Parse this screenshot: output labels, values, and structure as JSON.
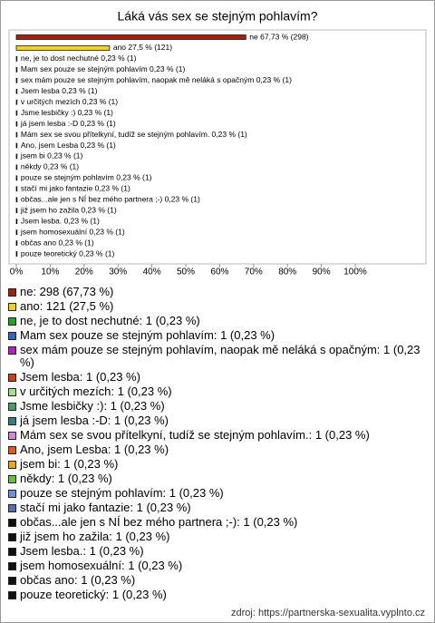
{
  "chart_data": {
    "type": "bar",
    "orientation": "horizontal",
    "title": "Láká vás sex se stejným pohlavím?",
    "categories": [
      "ne",
      "ano",
      "ne, je to dost nechutné",
      "Mam sex pouze se stejným pohlavím",
      "sex mám pouze se stejným pohlavím, naopak mě neláká s opačným",
      "Jsem lesba",
      "v určitých mezích",
      "Jsme lesbičky :)",
      "já jsem lesba :-D",
      "Mám sex se svou přítelkyní, tudíž se stejným pohlavím.",
      "Ano, jsem Lesba",
      "jsem bi",
      "někdy",
      "pouze se stejným pohlavím",
      "stačí mi jako fantazie",
      "občas...ale jen s NÍ bez mého partnera ;-)",
      "již jsem ho zažila",
      "Jsem lesba.",
      "jsem homosexuální",
      "občas ano",
      "pouze teoretický"
    ],
    "values": [
      67.73,
      27.5,
      0.23,
      0.23,
      0.23,
      0.23,
      0.23,
      0.23,
      0.23,
      0.23,
      0.23,
      0.23,
      0.23,
      0.23,
      0.23,
      0.23,
      0.23,
      0.23,
      0.23,
      0.23,
      0.23
    ],
    "value_labels": [
      "ne 67,73 % (298)",
      "ano 27,5 % (121)",
      "ne, je to dost nechutné 0,23 % (1)",
      "Mam sex pouze se stejným pohlavím 0,23 % (1)",
      "sex mám pouze se stejným pohlavím, naopak mě neláká s opačným 0,23 % (1)",
      "Jsem lesba 0,23 % (1)",
      "v určitých mezích 0,23 % (1)",
      "Jsme lesbičky :) 0,23 % (1)",
      "já jsem lesba :-D 0,23 % (1)",
      "Mám sex se svou přítelkyní, tudíž se stejným pohlavím. 0,23 % (1)",
      "Ano, jsem Lesba 0,23 % (1)",
      "jsem bi 0,23 % (1)",
      "někdy 0,23 % (1)",
      "pouze se stejným pohlavím 0,23 % (1)",
      "stačí mi jako fantazie 0,23 % (1)",
      "občas...ale jen s NÍ bez mého partnera ;-) 0,23 % (1)",
      "již jsem ho zažila 0,23 % (1)",
      "Jsem lesba. 0,23 % (1)",
      "jsem homosexuální 0,23 % (1)",
      "občas ano 0,23 % (1)",
      "pouze teoretický 0,23 % (1)"
    ],
    "legend_labels": [
      "ne: 298 (67,73 %)",
      "ano: 121 (27,5 %)",
      "ne, je to dost nechutné: 1 (0,23 %)",
      "Mam sex pouze se stejným pohlavím: 1 (0,23 %)",
      "sex mám pouze se stejným pohlavím, naopak mě neláká s opačným: 1 (0,23 %)",
      "Jsem lesba: 1 (0,23 %)",
      "v určitých mezích: 1 (0,23 %)",
      "Jsme lesbičky :): 1 (0,23 %)",
      "já jsem lesba :-D: 1 (0,23 %)",
      "Mám sex se svou přítelkyní, tudíž se stejným pohlavím.: 1 (0,23 %)",
      "Ano, jsem Lesba: 1 (0,23 %)",
      "jsem bi: 1 (0,23 %)",
      "někdy: 1 (0,23 %)",
      "pouze se stejným pohlavím: 1 (0,23 %)",
      "stačí mi jako fantazie: 1 (0,23 %)",
      "občas...ale jen s NÍ bez mého partnera ;-): 1 (0,23 %)",
      "již jsem ho zažila: 1 (0,23 %)",
      "Jsem lesba.: 1 (0,23 %)",
      "jsem homosexuální: 1 (0,23 %)",
      "občas ano: 1 (0,23 %)",
      "pouze teoretický: 1 (0,23 %)"
    ],
    "colors": [
      "#a8200c",
      "#f2d21a",
      "#1fa51f",
      "#3462c2",
      "#b521c0",
      "#d23d10",
      "#a6e28a",
      "#3fa363",
      "#2e8082",
      "#d486d8",
      "#e25a18",
      "#f0a41c",
      "#5fc43c",
      "#6a94e2",
      "#5470b2",
      "#111111",
      "#111111",
      "#111111",
      "#111111",
      "#111111",
      "#111111"
    ],
    "xlim": [
      0,
      100
    ],
    "xticks": [
      {
        "value": 0,
        "label": "0%"
      },
      {
        "value": 10,
        "label": "10%"
      },
      {
        "value": 20,
        "label": "20%"
      },
      {
        "value": 30,
        "label": "30%"
      },
      {
        "value": 40,
        "label": "40%"
      },
      {
        "value": 50,
        "label": "50%"
      },
      {
        "value": 60,
        "label": "60%"
      },
      {
        "value": 70,
        "label": "70%"
      },
      {
        "value": 80,
        "label": "80%"
      },
      {
        "value": 90,
        "label": "90%"
      },
      {
        "value": 100,
        "label": "100%"
      }
    ],
    "source": "zdroj: https://partnerska-sexualita.vyplnto.cz"
  }
}
